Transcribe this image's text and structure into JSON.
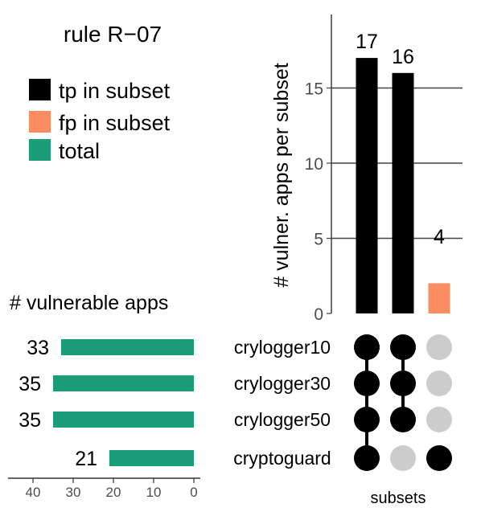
{
  "chart_data": {
    "type": "bar",
    "title": "rule R−07",
    "legend": {
      "placement": "top-left",
      "entries": [
        {
          "label": "tp in subset",
          "color": "#000000"
        },
        {
          "label": "fp in subset",
          "color": "#FC8D62"
        },
        {
          "label": "total",
          "color": "#1B9E77"
        }
      ]
    },
    "intersection": {
      "ylabel": "# vulner. apps per subset",
      "xlabel": "subsets",
      "ylim": [
        0,
        18
      ],
      "yticks": [
        0,
        5,
        10,
        15
      ],
      "grid": true,
      "bars": [
        {
          "label": "17",
          "tp": 17,
          "fp": 0,
          "members": [
            true,
            true,
            true,
            true
          ]
        },
        {
          "label": "16",
          "tp": 16,
          "fp": 0,
          "members": [
            true,
            true,
            true,
            false
          ]
        },
        {
          "label": "4",
          "tp": 2,
          "fp": 2,
          "members": [
            false,
            false,
            false,
            true
          ]
        }
      ]
    },
    "set_sizes": {
      "title": "# vulnerable apps",
      "xlim": [
        45,
        0
      ],
      "xticks": [
        40,
        30,
        20,
        10,
        0
      ],
      "sets": [
        {
          "name": "crylogger10",
          "value": 33,
          "label": "33"
        },
        {
          "name": "crylogger30",
          "value": 35,
          "label": "35"
        },
        {
          "name": "crylogger50",
          "value": 35,
          "label": "35"
        },
        {
          "name": "cryptoguard",
          "value": 21,
          "label": "21"
        }
      ]
    }
  }
}
